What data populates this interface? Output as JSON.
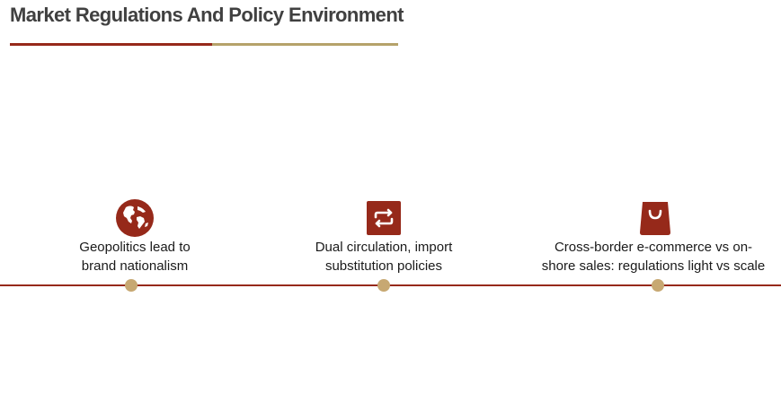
{
  "title": "Market Regulations And Policy Environment",
  "colors": {
    "title_text": "#404040",
    "accent_red": "#96291a",
    "accent_gold": "#b5a26a",
    "dot_fill": "#c7a872",
    "label_text": "#1a1a1a"
  },
  "milestones": [
    {
      "icon": "globe-icon",
      "label_lines": [
        "Geopolitics lead to",
        "brand nationalism"
      ]
    },
    {
      "icon": "swap-arrows-icon",
      "label_lines": [
        "Dual circulation, import",
        "substitution policies"
      ]
    },
    {
      "icon": "shopping-bag-icon",
      "label_lines": [
        "Cross-border e-commerce vs on-",
        "shore sales: regulations light vs scale"
      ]
    }
  ]
}
